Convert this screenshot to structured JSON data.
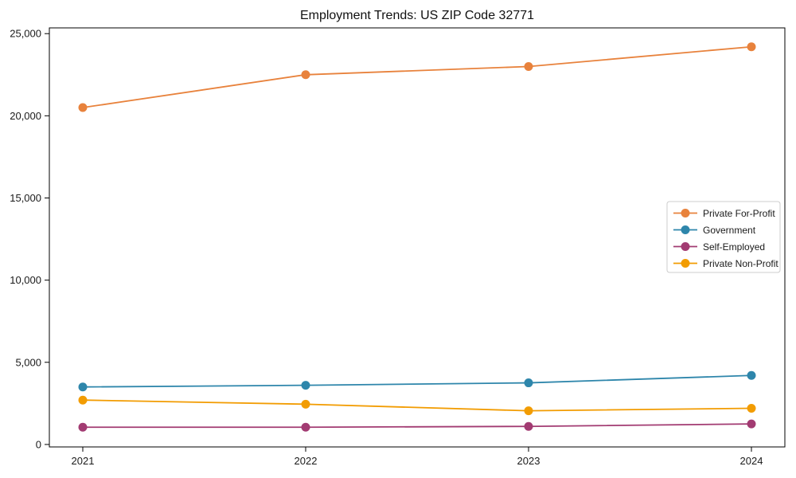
{
  "title": "Employment Trends: US ZIP Code 32771",
  "colors": {
    "background": "#ffffff",
    "axis": "#000000",
    "tick_text": "#1a1a1a",
    "legend_border": "#cccccc",
    "legend_background": "#ffffff"
  },
  "chart_data": {
    "type": "line",
    "title": "Employment Trends: US ZIP Code 32771",
    "xlabel": "",
    "ylabel": "",
    "x": [
      2021,
      2022,
      2023,
      2024
    ],
    "x_tick_labels": [
      "2021",
      "2022",
      "2023",
      "2024"
    ],
    "y_ticks": [
      0,
      5000,
      10000,
      15000,
      20000,
      25000
    ],
    "y_tick_labels": [
      "0",
      "5,000",
      "10,000",
      "15,000",
      "20,000",
      "25,000"
    ],
    "xlim": [
      2020.85,
      2024.15
    ],
    "ylim": [
      -150,
      25350
    ],
    "grid": false,
    "marker": "circle",
    "legend_position": "right",
    "series": [
      {
        "name": "Private For-Profit",
        "color": "#E8823C",
        "values": [
          20500,
          22500,
          23000,
          24200
        ]
      },
      {
        "name": "Government",
        "color": "#2E86AB",
        "values": [
          3500,
          3600,
          3750,
          4200
        ]
      },
      {
        "name": "Self-Employed",
        "color": "#A23B72",
        "values": [
          1050,
          1050,
          1100,
          1250
        ]
      },
      {
        "name": "Private Non-Profit",
        "color": "#F29C02",
        "values": [
          2700,
          2450,
          2050,
          2200
        ]
      }
    ]
  }
}
